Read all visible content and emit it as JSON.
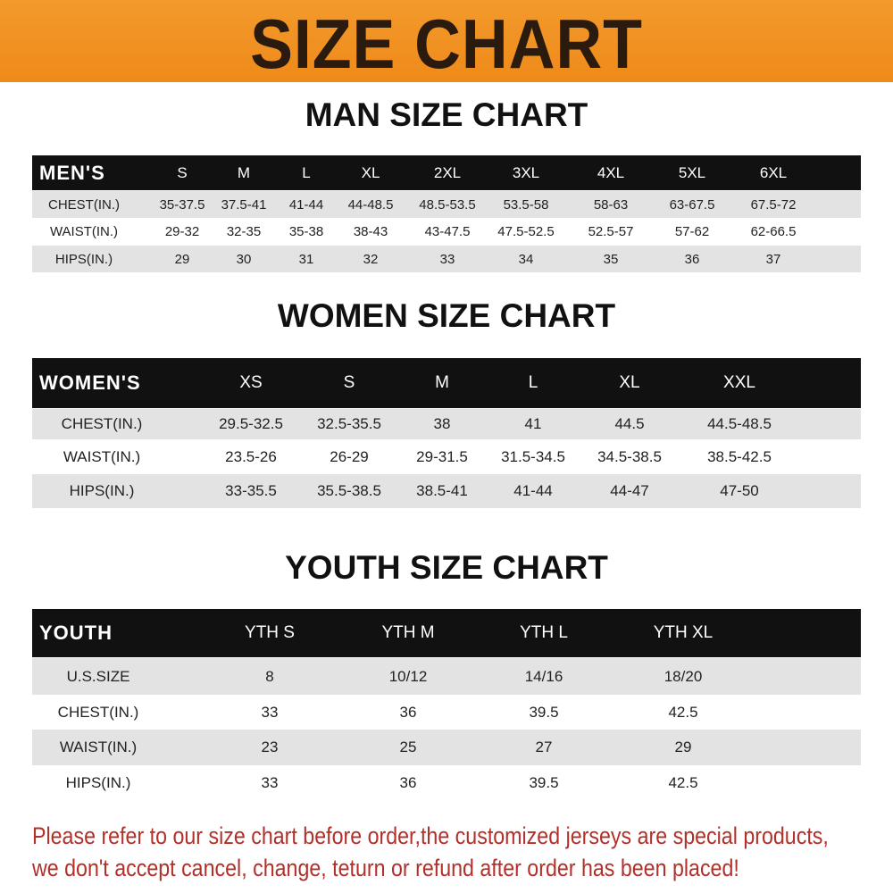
{
  "banner_title": "SIZE CHART",
  "colors": {
    "banner": "#f0901f",
    "header_row": "#111111",
    "shaded_row": "#e3e3e3",
    "notice_text": "#b3302a"
  },
  "men": {
    "title": "MAN SIZE CHART",
    "header": [
      "MEN'S",
      "S",
      "M",
      "L",
      "XL",
      "2XL",
      "3XL",
      "4XL",
      "5XL",
      "6XL"
    ],
    "rows": [
      [
        "CHEST(IN.)",
        "35-37.5",
        "37.5-41",
        "41-44",
        "44-48.5",
        "48.5-53.5",
        "53.5-58",
        "58-63",
        "63-67.5",
        "67.5-72"
      ],
      [
        "WAIST(IN.)",
        "29-32",
        "32-35",
        "35-38",
        "38-43",
        "43-47.5",
        "47.5-52.5",
        "52.5-57",
        "57-62",
        "62-66.5"
      ],
      [
        "HIPS(IN.)",
        "29",
        "30",
        "31",
        "32",
        "33",
        "34",
        "35",
        "36",
        "37"
      ]
    ]
  },
  "women": {
    "title": "WOMEN SIZE CHART",
    "header": [
      "WOMEN'S",
      "XS",
      "S",
      "M",
      "L",
      "XL",
      "XXL"
    ],
    "rows": [
      [
        "CHEST(IN.)",
        "29.5-32.5",
        "32.5-35.5",
        "38",
        "41",
        "44.5",
        "44.5-48.5"
      ],
      [
        "WAIST(IN.)",
        "23.5-26",
        "26-29",
        "29-31.5",
        "31.5-34.5",
        "34.5-38.5",
        "38.5-42.5"
      ],
      [
        "HIPS(IN.)",
        "33-35.5",
        "35.5-38.5",
        "38.5-41",
        "41-44",
        "44-47",
        "47-50"
      ]
    ]
  },
  "youth": {
    "title": "YOUTH SIZE CHART",
    "header": [
      "YOUTH",
      "YTH S",
      "YTH M",
      "YTH L",
      "YTH XL"
    ],
    "rows": [
      [
        "U.S.SIZE",
        "8",
        "10/12",
        "14/16",
        "18/20"
      ],
      [
        "CHEST(IN.)",
        "33",
        "36",
        "39.5",
        "42.5"
      ],
      [
        "WAIST(IN.)",
        "23",
        "25",
        "27",
        "29"
      ],
      [
        "HIPS(IN.)",
        "33",
        "36",
        "39.5",
        "42.5"
      ]
    ]
  },
  "notice": [
    "Please refer to our size chart before order,the customized jerseys are special products,",
    "we don't accept cancel, change, teturn or refund after order has been placed!"
  ]
}
